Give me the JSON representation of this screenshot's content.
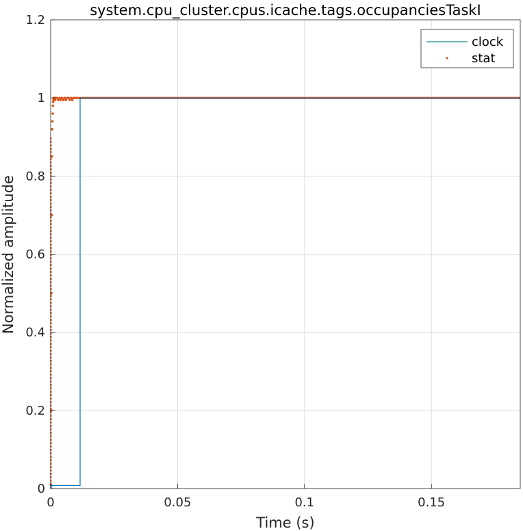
{
  "chart_data": {
    "type": "line",
    "title": "system.cpu_cluster.cpus.icache.tags.occupanciesTaskI",
    "xlabel": "Time (s)",
    "ylabel": "Normalized amplitude",
    "xlim": [
      0,
      0.185
    ],
    "ylim": [
      0,
      1.2
    ],
    "x_ticks": [
      0,
      0.05,
      0.1,
      0.15
    ],
    "x_tick_labels": [
      "0",
      "0.05",
      "0.1",
      "0.15"
    ],
    "y_ticks": [
      0,
      0.2,
      0.4,
      0.6,
      0.8,
      1,
      1.2
    ],
    "y_tick_labels": [
      "0",
      "0.2",
      "0.4",
      "0.6",
      "0.8",
      "1",
      "1.2"
    ],
    "grid": true,
    "legend_position": "top-right",
    "series": [
      {
        "name": "clock",
        "style": "step-line",
        "color": "#0072BD",
        "legend_color": "#1A8A8A",
        "x": [
          0,
          0.0003,
          0.0003,
          0.0116,
          0.0116,
          0.185
        ],
        "y": [
          0,
          0,
          0.008,
          0.008,
          1,
          1
        ]
      },
      {
        "name": "stat",
        "style": "dots",
        "color": "#D95319",
        "x": [
          0.0001,
          0.0002,
          0.0003,
          0.0004,
          0.0005,
          0.0006,
          0.0007,
          0.0008,
          0.0009,
          0.001,
          0.0011,
          0.0012,
          0.0014,
          0.0016,
          0.0018,
          0.002,
          0.0025,
          0.003,
          0.0035,
          0.004,
          0.0045,
          0.005,
          0.0055,
          0.006,
          0.0065,
          0.007,
          0.0075,
          0.008,
          0.0085,
          0.009
        ],
        "y": [
          0.01,
          0.2,
          0.5,
          0.7,
          0.85,
          0.92,
          0.94,
          0.96,
          0.98,
          0.99,
          0.995,
          1,
          1,
          1,
          0.995,
          1,
          1,
          0.995,
          1,
          0.995,
          1,
          0.995,
          1,
          0.995,
          1,
          1,
          0.995,
          1,
          0.995,
          1
        ],
        "solid_from_x": 0.009,
        "solid_value": 1
      }
    ]
  }
}
